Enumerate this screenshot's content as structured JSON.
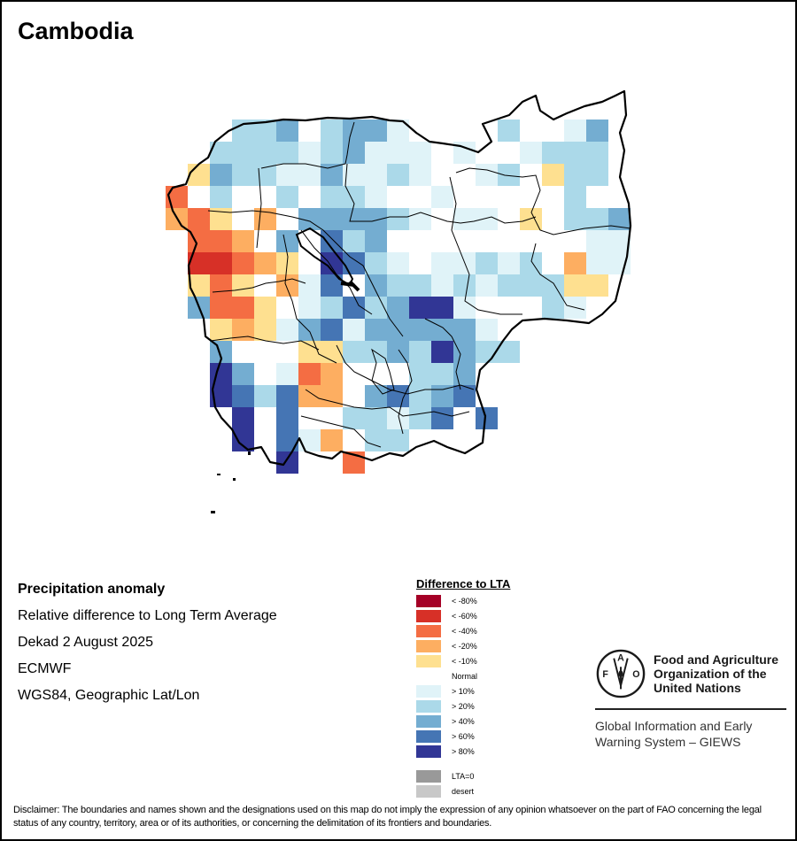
{
  "title": "Cambodia",
  "info": {
    "heading": "Precipitation anomaly",
    "lines": [
      "Relative difference to Long Term Average",
      "Dekad 2 August 2025",
      "ECMWF",
      "WGS84, Geographic Lat/Lon"
    ]
  },
  "legend": {
    "title": "Difference to LTA",
    "classes": [
      {
        "code": "X",
        "label": "< -80%",
        "color": "#a50026"
      },
      {
        "code": "D",
        "label": "< -60%",
        "color": "#d73027"
      },
      {
        "code": "R",
        "label": "< -40%",
        "color": "#f46d43"
      },
      {
        "code": "O",
        "label": "< -20%",
        "color": "#fdae61"
      },
      {
        "code": "Y",
        "label": "< -10%",
        "color": "#fee090"
      },
      {
        "code": "W",
        "label": "Normal",
        "color": "#ffffff"
      },
      {
        "code": "V",
        "label": "> 10%",
        "color": "#e0f3f8"
      },
      {
        "code": "L",
        "label": "> 20%",
        "color": "#abd9e9"
      },
      {
        "code": "M",
        "label": "> 40%",
        "color": "#74add1"
      },
      {
        "code": "B",
        "label": "> 60%",
        "color": "#4575b4"
      },
      {
        "code": "N",
        "label": "> 80%",
        "color": "#313695"
      }
    ],
    "extra": [
      {
        "label": "LTA=0",
        "color": "#999999"
      },
      {
        "label": "desert",
        "color": "#c8c8c8"
      }
    ]
  },
  "chart_data": {
    "type": "heatmap",
    "title": "Cambodia – Precipitation anomaly, relative difference to Long Term Average, Dekad 2 August 2025 (ECMWF)",
    "legend_placement": "bottom-center",
    "cell_codes_note": "Rows north to south, columns west to east; '.' = outside country; codes map to legend.classes",
    "grid": [
      "..WLLMWLMMV....L..VM.",
      "..LLLLVLMVVVWVWWVLLL.",
      ".YMLLVVMVVLVWWVLWYLL.",
      "RWLWWLWLLVWWVWWWWWLWW",
      "ORYWOWMMMMLVWVVWYWLLM",
      "WRROWMWBLMWWWWWWWWWVV",
      "WDDROYWNBLVWVVLVLWOVV",
      "WYRYWOVBWMLLVLVLLLYYW",
      "WMRRYWVLBLMNNVWWWLVW.",
      "WWYOYVMBVMMMMMVW.....",
      "WWMWWWYYLLMLNMLL.....",
      "WWNMWVROWWWLLMW......",
      "..NBLBOOWMBLMBW......",
      "..WNWBWWLLVLBWB......",
      "...NWBVOWLL..........",
      ".....N..R............"
    ]
  },
  "fao": {
    "name_lines": [
      "Food and Agriculture",
      "Organization of the",
      "United Nations"
    ],
    "logo_letters": [
      "F",
      "A",
      "O"
    ],
    "motto": "FIAT PANIS",
    "giews_lines": [
      "Global Information and Early",
      "Warning System – GIEWS"
    ]
  },
  "disclaimer": "Disclaimer: The boundaries and names shown and the designations used on this map do not imply the expression of any opinion whatsoever on the part of FAO concerning the legal status of any country, territory, area or of its authorities, or concerning the delimitation of its frontiers and boundaries."
}
